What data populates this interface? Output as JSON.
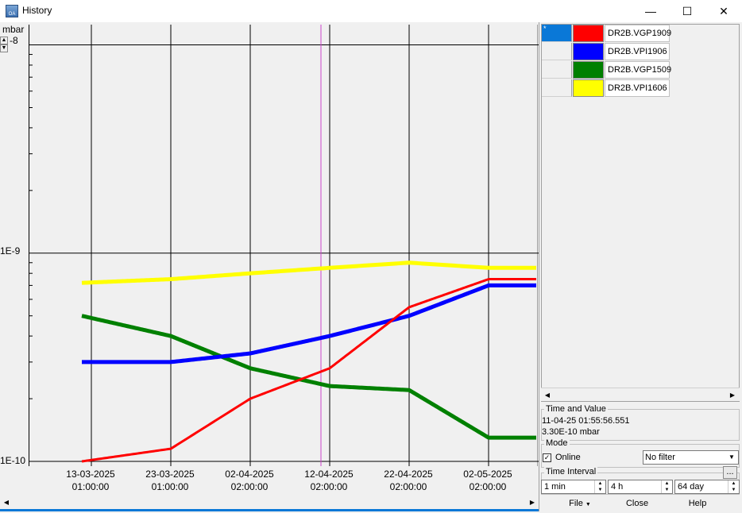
{
  "window": {
    "title": "History",
    "app_icon_text": "OA"
  },
  "titlebar_buttons": {
    "minimize": "—",
    "maximize": "☐",
    "close": "✕"
  },
  "chart": {
    "unit": "mbar",
    "y_labels": [
      "1E-8",
      "1E-9",
      "1E-10"
    ],
    "y_top_label_visible": "-8",
    "x_ticks": [
      {
        "date": "13-03-2025",
        "time": "01:00:00"
      },
      {
        "date": "23-03-2025",
        "time": "01:00:00"
      },
      {
        "date": "02-04-2025",
        "time": "02:00:00"
      },
      {
        "date": "12-04-2025",
        "time": "02:00:00"
      },
      {
        "date": "22-04-2025",
        "time": "02:00:00"
      },
      {
        "date": "02-05-2025",
        "time": "02:00:00"
      }
    ]
  },
  "chart_data": {
    "type": "line",
    "ylabel": "mbar",
    "yscale": "log",
    "ylim": [
      1e-10,
      1.05e-08
    ],
    "grid": true,
    "x": [
      "13-03-2025",
      "23-03-2025",
      "02-04-2025",
      "12-04-2025",
      "22-04-2025",
      "02-05-2025"
    ],
    "series": [
      {
        "name": "DR2B.VGP1909",
        "color": "#ff0000",
        "values": [
          1e-10,
          1.15e-10,
          2e-10,
          2.8e-10,
          5.5e-10,
          7.5e-10
        ]
      },
      {
        "name": "DR2B.VPI1906",
        "color": "#0000ff",
        "values": [
          3e-10,
          3e-10,
          3.3e-10,
          4e-10,
          5e-10,
          7e-10
        ]
      },
      {
        "name": "DR2B.VGP1509",
        "color": "#008000",
        "values": [
          5e-10,
          4e-10,
          2.8e-10,
          2.3e-10,
          2.2e-10,
          1.3e-10
        ]
      },
      {
        "name": "DR2B.VPI1606",
        "color": "#ffff00",
        "values": [
          7.2e-10,
          7.5e-10,
          8e-10,
          8.5e-10,
          9e-10,
          8.5e-10
        ]
      }
    ]
  },
  "series_list": [
    {
      "name": "DR2B.VGP1909",
      "color": "#ff0000",
      "selected": true,
      "marker": "*"
    },
    {
      "name": "DR2B.VPI1906",
      "color": "#0000ff",
      "selected": false,
      "marker": ""
    },
    {
      "name": "DR2B.VGP1509",
      "color": "#008000",
      "selected": false,
      "marker": ""
    },
    {
      "name": "DR2B.VPI1606",
      "color": "#ffff00",
      "selected": false,
      "marker": ""
    }
  ],
  "time_value": {
    "title": "Time and Value",
    "time": "11-04-25 01:55:56.551",
    "value": "3.30E-10 mbar"
  },
  "mode": {
    "title": "Mode",
    "online_label": "Online",
    "online_checked": true,
    "filter_value": "No filter"
  },
  "time_interval": {
    "title": "Time Interval",
    "dots": "...",
    "step": "1 min",
    "window": "4 h",
    "range": "64 day"
  },
  "bottom_menu": {
    "file": "File",
    "close": "Close",
    "help": "Help"
  }
}
